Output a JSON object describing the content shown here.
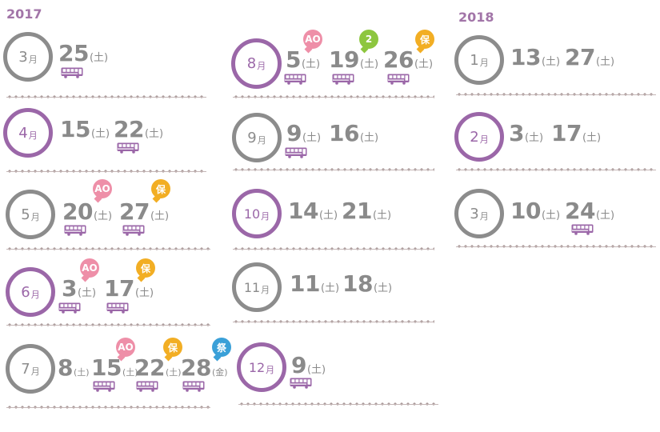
{
  "years": {
    "y2017": "2017",
    "y2018": "2018"
  },
  "month_unit": "月",
  "dow_sat": "(土)",
  "dow_fri": "(金)",
  "badges": {
    "ao": "AO",
    "two": "2",
    "ho": "保",
    "matsuri": "祭"
  },
  "colors": {
    "purple": "#9b67a8",
    "gray": "#8c8c8c",
    "ao": "#ee8fa8",
    "ho": "#f2ae24",
    "two": "#8dc63f",
    "matsuri": "#3aa0d8"
  },
  "months": {
    "m3_2017": {
      "month": "3",
      "style": "gray",
      "dates": [
        "25"
      ]
    },
    "m4": {
      "month": "4",
      "style": "purple",
      "dates": [
        "15",
        "22"
      ]
    },
    "m5": {
      "month": "5",
      "style": "gray",
      "dates": [
        "20",
        "27"
      ]
    },
    "m6": {
      "month": "6",
      "style": "purple",
      "dates": [
        "3",
        "17"
      ]
    },
    "m7": {
      "month": "7",
      "style": "gray",
      "dates": [
        "8",
        "15",
        "22",
        "28"
      ]
    },
    "m8": {
      "month": "8",
      "style": "purple",
      "dates": [
        "5",
        "19",
        "26"
      ]
    },
    "m9": {
      "month": "9",
      "style": "gray",
      "dates": [
        "9",
        "16"
      ]
    },
    "m10": {
      "month": "10",
      "style": "purple",
      "dates": [
        "14",
        "21"
      ]
    },
    "m11": {
      "month": "11",
      "style": "gray",
      "dates": [
        "11",
        "18"
      ]
    },
    "m12": {
      "month": "12",
      "style": "purple",
      "dates": [
        "9"
      ]
    },
    "m1": {
      "month": "1",
      "style": "gray",
      "dates": [
        "13",
        "27"
      ]
    },
    "m2": {
      "month": "2",
      "style": "purple",
      "dates": [
        "3",
        "17"
      ]
    },
    "m3_2018": {
      "month": "3",
      "style": "gray",
      "dates": [
        "10",
        "24"
      ]
    }
  }
}
